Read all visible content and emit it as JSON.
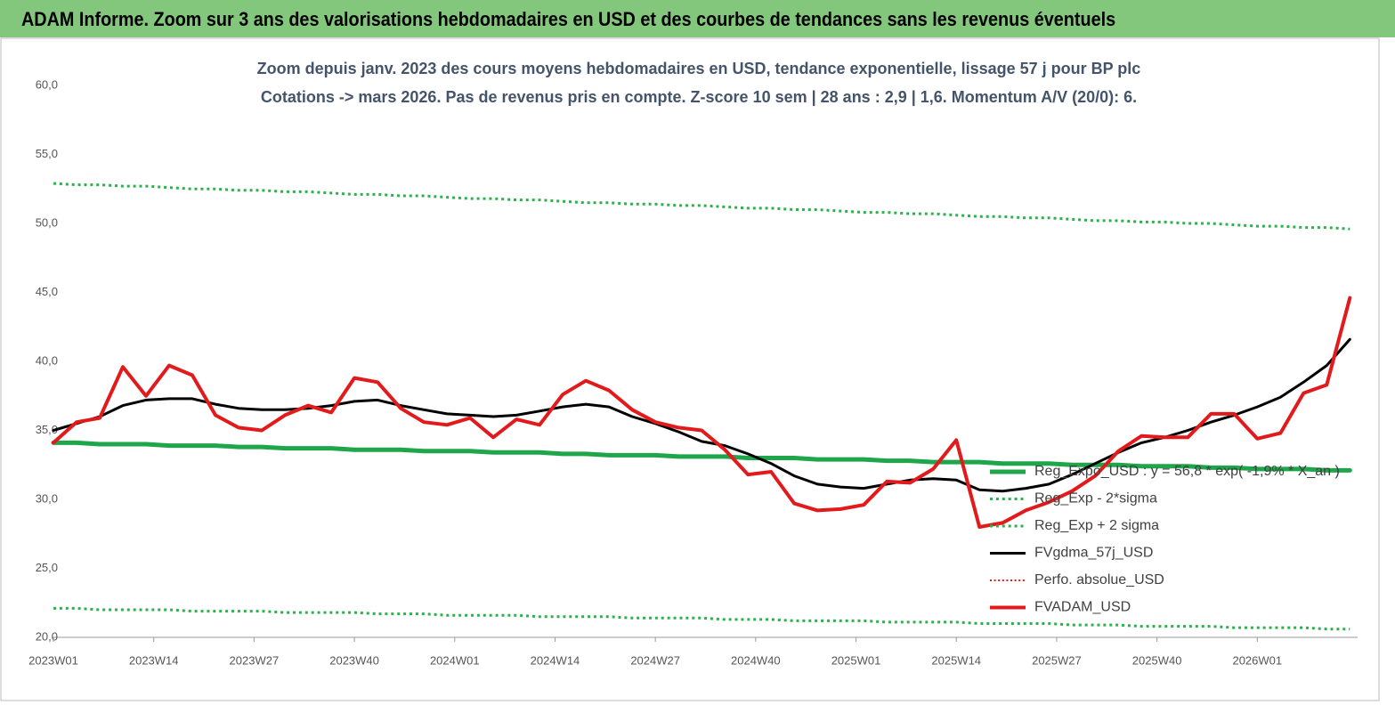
{
  "header": {
    "title": "ADAM Informe. Zoom sur 3 ans des valorisations hebdomadaires en USD et des courbes de tendances sans les revenus éventuels"
  },
  "chart_data": {
    "type": "line",
    "title": "Zoom depuis janv. 2023 des cours moyens hebdomadaires en USD, tendance exponentielle, lissage 57 j pour BP plc",
    "subtitle": "Cotations -> mars 2026. Pas de revenus pris en compte. Z-score 10 sem | 28 ans : 2,9 | 1,6. Momentum A/V (20/0): 6.",
    "x": [
      0,
      3,
      6,
      9,
      12,
      15,
      18,
      21,
      24,
      27,
      30,
      33,
      36,
      39,
      42,
      45,
      48,
      51,
      54,
      57,
      60,
      63,
      66,
      69,
      72,
      75,
      78,
      81,
      84,
      87,
      90,
      93,
      96,
      99,
      102,
      105,
      108,
      111,
      114,
      117,
      120,
      123,
      126,
      129,
      132,
      135,
      138,
      141,
      144,
      147,
      150,
      153,
      156,
      159,
      162,
      165,
      168
    ],
    "xlim": [
      0,
      169
    ],
    "xticks": [
      {
        "value": 0,
        "label": "2023W01"
      },
      {
        "value": 13,
        "label": "2023W14"
      },
      {
        "value": 26,
        "label": "2023W27"
      },
      {
        "value": 39,
        "label": "2023W40"
      },
      {
        "value": 52,
        "label": "2024W01"
      },
      {
        "value": 65,
        "label": "2024W14"
      },
      {
        "value": 78,
        "label": "2024W27"
      },
      {
        "value": 91,
        "label": "2024W40"
      },
      {
        "value": 104,
        "label": "2025W01"
      },
      {
        "value": 117,
        "label": "2025W14"
      },
      {
        "value": 130,
        "label": "2025W27"
      },
      {
        "value": 143,
        "label": "2025W40"
      },
      {
        "value": 156,
        "label": "2026W01"
      }
    ],
    "ylim": [
      20,
      60
    ],
    "yticks": [
      {
        "value": 20,
        "label": "20,0"
      },
      {
        "value": 25,
        "label": "25,0"
      },
      {
        "value": 30,
        "label": "30,0"
      },
      {
        "value": 35,
        "label": "35,0"
      },
      {
        "value": 40,
        "label": "40,0"
      },
      {
        "value": 45,
        "label": "45,0"
      },
      {
        "value": 50,
        "label": "50,0"
      },
      {
        "value": 55,
        "label": "55,0"
      },
      {
        "value": 60,
        "label": "60,0"
      }
    ],
    "grid": false,
    "legend": "lower-right",
    "series": [
      {
        "name": "Reg_Expo_USD : y = 56,8 * exp( -1,9% * X_an )",
        "color": "#1fa64b",
        "style": "solid",
        "width": 5,
        "values": [
          34.1,
          34.1,
          34.0,
          34.0,
          34.0,
          33.9,
          33.9,
          33.9,
          33.8,
          33.8,
          33.7,
          33.7,
          33.7,
          33.6,
          33.6,
          33.6,
          33.5,
          33.5,
          33.5,
          33.4,
          33.4,
          33.4,
          33.3,
          33.3,
          33.2,
          33.2,
          33.2,
          33.1,
          33.1,
          33.1,
          33.0,
          33.0,
          33.0,
          32.9,
          32.9,
          32.9,
          32.8,
          32.8,
          32.7,
          32.7,
          32.7,
          32.6,
          32.6,
          32.6,
          32.5,
          32.5,
          32.5,
          32.4,
          32.4,
          32.4,
          32.3,
          32.3,
          32.2,
          32.2,
          32.2,
          32.1,
          32.1
        ]
      },
      {
        "name": "Reg_Exp - 2*sigma",
        "color": "#2bb24c",
        "style": "dotted",
        "width": 3,
        "values": [
          22.1,
          22.1,
          22.0,
          22.0,
          22.0,
          22.0,
          21.9,
          21.9,
          21.9,
          21.9,
          21.8,
          21.8,
          21.8,
          21.8,
          21.7,
          21.7,
          21.7,
          21.6,
          21.6,
          21.6,
          21.6,
          21.5,
          21.5,
          21.5,
          21.5,
          21.4,
          21.4,
          21.4,
          21.4,
          21.3,
          21.3,
          21.3,
          21.2,
          21.2,
          21.2,
          21.2,
          21.1,
          21.1,
          21.1,
          21.1,
          21.0,
          21.0,
          21.0,
          21.0,
          20.9,
          20.9,
          20.9,
          20.8,
          20.8,
          20.8,
          20.8,
          20.7,
          20.7,
          20.7,
          20.7,
          20.6,
          20.6
        ]
      },
      {
        "name": "Reg_Exp + 2 sigma",
        "color": "#2bb24c",
        "style": "dotted",
        "width": 3,
        "values": [
          52.9,
          52.8,
          52.8,
          52.7,
          52.7,
          52.6,
          52.5,
          52.5,
          52.4,
          52.4,
          52.3,
          52.3,
          52.2,
          52.1,
          52.1,
          52.0,
          52.0,
          51.9,
          51.8,
          51.8,
          51.7,
          51.7,
          51.6,
          51.5,
          51.5,
          51.4,
          51.4,
          51.3,
          51.3,
          51.2,
          51.1,
          51.1,
          51.0,
          51.0,
          50.9,
          50.8,
          50.8,
          50.7,
          50.7,
          50.6,
          50.5,
          50.5,
          50.4,
          50.4,
          50.3,
          50.2,
          50.2,
          50.1,
          50.1,
          50.0,
          50.0,
          49.9,
          49.8,
          49.8,
          49.7,
          49.7,
          49.6
        ]
      },
      {
        "name": "FVgdma_57j_USD",
        "color": "#000000",
        "style": "solid",
        "width": 3,
        "values": [
          35.0,
          35.5,
          36.0,
          36.8,
          37.2,
          37.3,
          37.3,
          36.9,
          36.6,
          36.5,
          36.5,
          36.6,
          36.8,
          37.1,
          37.2,
          36.8,
          36.5,
          36.2,
          36.1,
          36.0,
          36.1,
          36.4,
          36.7,
          36.9,
          36.7,
          36.0,
          35.5,
          34.9,
          34.2,
          33.9,
          33.3,
          32.6,
          31.7,
          31.1,
          30.9,
          30.8,
          31.1,
          31.4,
          31.5,
          31.4,
          30.7,
          30.6,
          30.8,
          31.1,
          31.8,
          32.6,
          33.4,
          34.1,
          34.5,
          35.0,
          35.6,
          36.1,
          36.7,
          37.4,
          38.5,
          39.7,
          41.6
        ]
      },
      {
        "name": "Perfo. absolue_USD",
        "color": "#e31a1c",
        "style": "dotted",
        "width": 2,
        "values": [
          null,
          null,
          null,
          null,
          null,
          null,
          null,
          null,
          null,
          null,
          null,
          null,
          null,
          null,
          null,
          null,
          null,
          null,
          null,
          null,
          null,
          null,
          null,
          null,
          null,
          null,
          null,
          null,
          null,
          null,
          null,
          null,
          null,
          null,
          null,
          null,
          null,
          null,
          null,
          null,
          null,
          null,
          null,
          null,
          null,
          null,
          null,
          null,
          null,
          null,
          null,
          null,
          null,
          null,
          null,
          null,
          null
        ]
      },
      {
        "name": "FVADAM_USD",
        "color": "#e31a1c",
        "style": "solid",
        "width": 4,
        "values": [
          34.1,
          35.6,
          35.9,
          39.6,
          37.5,
          39.7,
          39.0,
          36.1,
          35.2,
          35.0,
          36.1,
          36.8,
          36.3,
          38.8,
          38.5,
          36.6,
          35.6,
          35.4,
          35.9,
          34.5,
          35.8,
          35.4,
          37.6,
          38.6,
          37.9,
          36.5,
          35.6,
          35.2,
          35.0,
          33.6,
          31.8,
          32.0,
          29.7,
          29.2,
          29.3,
          29.6,
          31.3,
          31.2,
          32.2,
          34.3,
          28.0,
          28.3,
          29.2,
          29.8,
          30.6,
          31.7,
          33.5,
          34.6,
          34.5,
          34.5,
          36.2,
          36.2,
          34.4,
          34.8,
          37.7,
          38.3,
          44.6
        ]
      }
    ]
  }
}
